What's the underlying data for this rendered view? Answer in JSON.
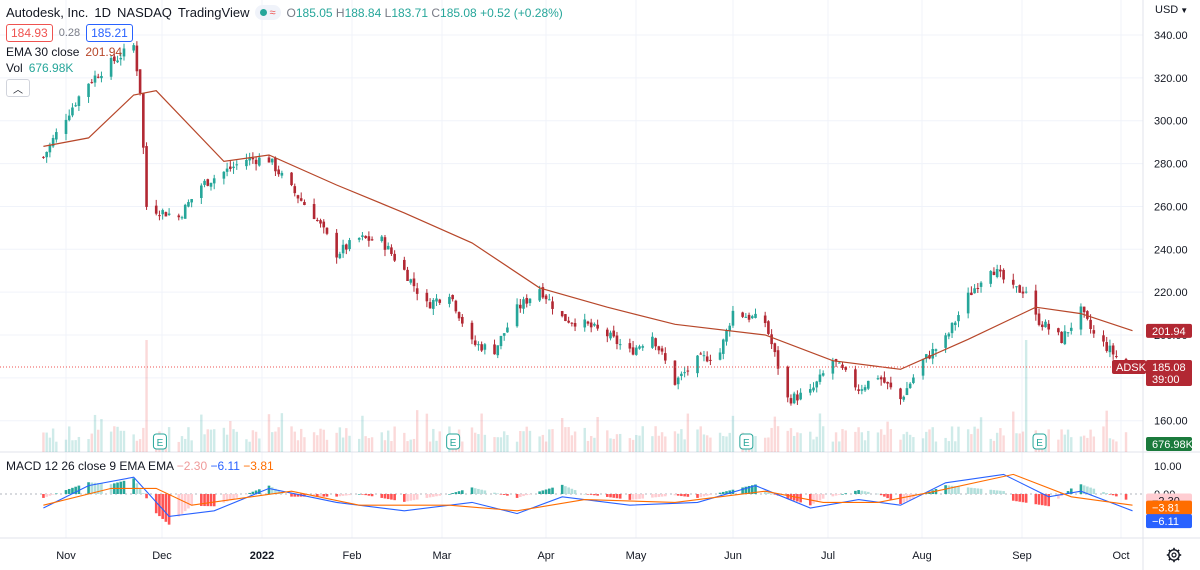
{
  "header": {
    "symbol": "Autodesk, Inc.",
    "interval": "1D",
    "exchange": "NASDAQ",
    "source": "TradingView",
    "ohlc": {
      "o_label": "O",
      "o": "185.05",
      "h_label": "H",
      "h": "188.84",
      "l_label": "L",
      "l": "183.71",
      "c_label": "C",
      "c": "185.08",
      "change": "+0.52 (+0.28%)"
    },
    "bid": "184.93",
    "spread": "0.28",
    "ask": "185.21",
    "ema_label": "EMA 30 close",
    "ema_value": "201.94",
    "vol_label": "Vol",
    "vol_value": "676.98K"
  },
  "currency": "USD",
  "macd_legend": {
    "label": "MACD 12 26 close 9 EMA EMA",
    "hist": "−2.30",
    "macd": "−6.11",
    "signal": "−3.81"
  },
  "price_tags": {
    "ema": "201.94",
    "ticker": "ADSK",
    "last": "185.08",
    "countdown": "39:00",
    "volume": "676.98K",
    "macd_hist": "−2.30",
    "macd_signal": "−3.81",
    "macd_line": "−6.11"
  },
  "colors": {
    "up": "#26a69a",
    "down": "#ef5350",
    "down_dark": "#b22833",
    "ema": "#b7472a",
    "macd_line": "#2962ff",
    "signal_line": "#ff6d00"
  },
  "earnings_marker": "E",
  "chart_data": {
    "type": "candlestick",
    "price_axis": {
      "ticks": [
        160,
        180,
        200,
        220,
        240,
        260,
        280,
        300,
        320,
        340
      ],
      "labels": [
        "160.00",
        "180.00",
        "200.00",
        "220.00",
        "240.00",
        "260.00",
        "280.00",
        "300.00",
        "320.00",
        "340.00"
      ],
      "ylim": [
        148,
        344
      ]
    },
    "macd_axis": {
      "ticks": [
        10,
        0
      ],
      "labels": [
        "10.00",
        "0.00"
      ]
    },
    "x_axis": {
      "labels": [
        "Nov",
        "Dec",
        "2022",
        "Feb",
        "Mar",
        "Apr",
        "May",
        "Jun",
        "Jul",
        "Aug",
        "Sep",
        "Oct"
      ],
      "bold": "2022"
    },
    "close_anchors": [
      [
        "2021-10-25",
        283
      ],
      [
        "2021-11-01",
        302
      ],
      [
        "2021-11-08",
        318
      ],
      [
        "2021-11-15",
        327
      ],
      [
        "2021-11-22",
        335
      ],
      [
        "2021-11-24",
        314
      ],
      [
        "2021-11-26",
        260
      ],
      [
        "2021-12-06",
        255
      ],
      [
        "2021-12-13",
        270
      ],
      [
        "2021-12-20",
        276
      ],
      [
        "2021-12-27",
        282
      ],
      [
        "2022-01-03",
        282
      ],
      [
        "2022-01-10",
        268
      ],
      [
        "2022-01-17",
        256
      ],
      [
        "2022-01-24",
        238
      ],
      [
        "2022-01-31",
        245
      ],
      [
        "2022-02-07",
        244
      ],
      [
        "2022-02-14",
        230
      ],
      [
        "2022-02-21",
        214
      ],
      [
        "2022-02-28",
        220
      ],
      [
        "2022-03-07",
        196
      ],
      [
        "2022-03-14",
        193
      ],
      [
        "2022-03-21",
        212
      ],
      [
        "2022-03-28",
        222
      ],
      [
        "2022-04-04",
        208
      ],
      [
        "2022-04-11",
        205
      ],
      [
        "2022-04-18",
        200
      ],
      [
        "2022-04-25",
        192
      ],
      [
        "2022-05-02",
        200
      ],
      [
        "2022-05-09",
        178
      ],
      [
        "2022-05-16",
        188
      ],
      [
        "2022-05-23",
        192
      ],
      [
        "2022-05-27",
        211
      ],
      [
        "2022-06-06",
        206
      ],
      [
        "2022-06-13",
        170
      ],
      [
        "2022-06-20",
        173
      ],
      [
        "2022-06-27",
        188
      ],
      [
        "2022-07-05",
        175
      ],
      [
        "2022-07-11",
        181
      ],
      [
        "2022-07-18",
        170
      ],
      [
        "2022-07-25",
        188
      ],
      [
        "2022-08-01",
        198
      ],
      [
        "2022-08-08",
        218
      ],
      [
        "2022-08-15",
        232
      ],
      [
        "2022-08-22",
        221
      ],
      [
        "2022-08-26",
        221
      ],
      [
        "2022-08-29",
        208
      ],
      [
        "2022-09-06",
        198
      ],
      [
        "2022-09-12",
        211
      ],
      [
        "2022-09-16",
        200
      ],
      [
        "2022-09-21",
        193
      ],
      [
        "2022-09-26",
        185
      ]
    ],
    "ema30": [
      [
        "2021-10-25",
        288
      ],
      [
        "2021-11-08",
        292
      ],
      [
        "2021-11-22",
        312
      ],
      [
        "2021-11-29",
        314
      ],
      [
        "2021-12-20",
        281
      ],
      [
        "2022-01-03",
        284
      ],
      [
        "2022-01-24",
        270
      ],
      [
        "2022-02-14",
        257
      ],
      [
        "2022-03-07",
        243
      ],
      [
        "2022-03-28",
        222
      ],
      [
        "2022-04-18",
        213
      ],
      [
        "2022-05-09",
        205
      ],
      [
        "2022-06-06",
        200
      ],
      [
        "2022-06-27",
        188
      ],
      [
        "2022-07-18",
        184
      ],
      [
        "2022-08-08",
        198
      ],
      [
        "2022-08-29",
        213
      ],
      [
        "2022-09-12",
        210
      ],
      [
        "2022-09-28",
        202
      ]
    ],
    "volume_spike": [
      "2021-11-26",
      "2022-08-26"
    ],
    "earnings_dates": [
      "2021-11-30",
      "2022-03-01",
      "2022-05-31",
      "2022-08-30"
    ],
    "macd_line": [
      [
        "2021-10-25",
        -5
      ],
      [
        "2021-11-08",
        3
      ],
      [
        "2021-11-22",
        6
      ],
      [
        "2021-12-03",
        -8
      ],
      [
        "2021-12-17",
        -6
      ],
      [
        "2022-01-03",
        2
      ],
      [
        "2022-01-24",
        -3
      ],
      [
        "2022-02-14",
        -6
      ],
      [
        "2022-03-07",
        -3
      ],
      [
        "2022-03-21",
        -7
      ],
      [
        "2022-04-04",
        -1
      ],
      [
        "2022-04-25",
        -4
      ],
      [
        "2022-05-16",
        -3
      ],
      [
        "2022-06-03",
        3
      ],
      [
        "2022-06-20",
        -5
      ],
      [
        "2022-07-05",
        -2
      ],
      [
        "2022-07-18",
        -4
      ],
      [
        "2022-08-01",
        4
      ],
      [
        "2022-08-19",
        7
      ],
      [
        "2022-09-02",
        -1
      ],
      [
        "2022-09-12",
        1
      ],
      [
        "2022-09-28",
        -6
      ]
    ],
    "signal_line": [
      [
        "2021-10-25",
        -4
      ],
      [
        "2021-11-15",
        2
      ],
      [
        "2021-11-29",
        2
      ],
      [
        "2021-12-10",
        -4
      ],
      [
        "2022-01-10",
        1
      ],
      [
        "2022-01-31",
        -4
      ],
      [
        "2022-02-28",
        -4
      ],
      [
        "2022-03-21",
        -6
      ],
      [
        "2022-04-11",
        -2
      ],
      [
        "2022-05-09",
        -3
      ],
      [
        "2022-06-06",
        1
      ],
      [
        "2022-06-24",
        -3
      ],
      [
        "2022-07-11",
        -3
      ],
      [
        "2022-07-29",
        1
      ],
      [
        "2022-08-22",
        7
      ],
      [
        "2022-09-09",
        -1
      ],
      [
        "2022-09-28",
        -4
      ]
    ]
  }
}
